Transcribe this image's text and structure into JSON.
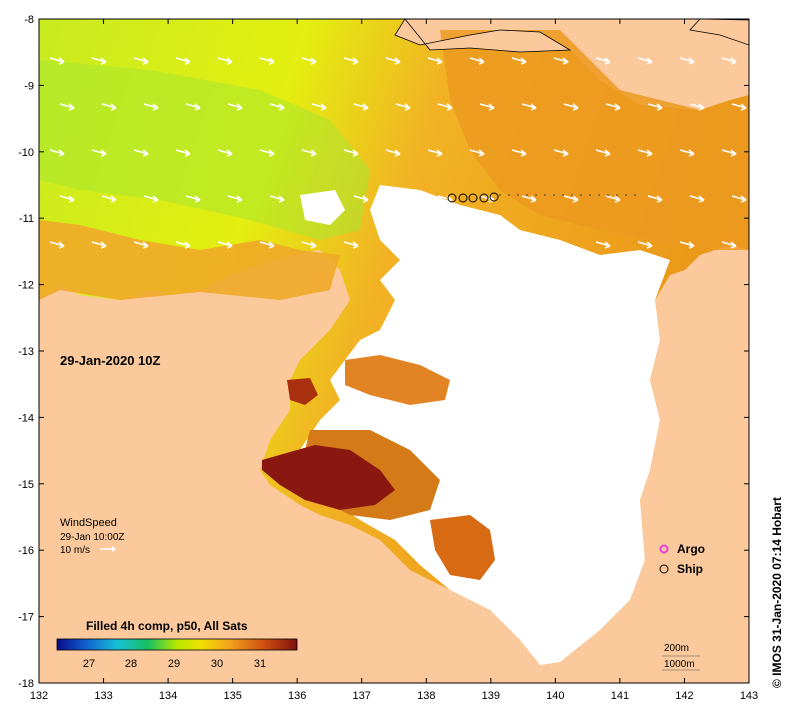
{
  "map": {
    "timestamp": "29-Jan-2020 10Z",
    "x_ticks": [
      "132",
      "133",
      "134",
      "135",
      "136",
      "137",
      "138",
      "139",
      "140",
      "141",
      "142",
      "143"
    ],
    "y_ticks": [
      "-8",
      "-9",
      "-10",
      "-11",
      "-12",
      "-13",
      "-14",
      "-15",
      "-16",
      "-17",
      "-18"
    ],
    "wind_legend": {
      "title": "WindSpeed",
      "time": "29-Jan 10:00Z",
      "speed": "10 m/s"
    },
    "markers_legend": {
      "argo": "Argo",
      "ship": "Ship"
    },
    "colorbar": {
      "title": "Filled 4h comp, p50, All Sats",
      "ticks": [
        "27",
        "28",
        "29",
        "30",
        "31"
      ]
    },
    "scale": {
      "depth1": "200m",
      "depth2": "1000m"
    },
    "credit": "© IMOS 31-Jan-2020 07:14 Hobart",
    "colors": {
      "land": "#fbc99b",
      "nodata": "#ffffff",
      "cold": "#0a0a8a",
      "mid": "#d8f000",
      "warm": "#f2a21e",
      "hot": "#8a1810",
      "argo": "#e040e0"
    }
  }
}
